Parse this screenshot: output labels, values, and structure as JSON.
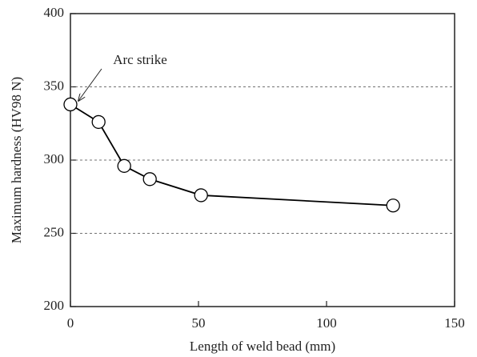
{
  "chart_data": {
    "type": "line",
    "x_label": "Length of weld bead (mm)",
    "y_label": "Maximum hardness (HV98 N)",
    "annotation": "Arc strike",
    "x": [
      0,
      11,
      21,
      31,
      51,
      126
    ],
    "series": [
      {
        "name": "Maximum hardness",
        "color": "#000000",
        "values": [
          338,
          326,
          296,
          287,
          276,
          269
        ]
      }
    ],
    "xlim": [
      0,
      150
    ],
    "xticks": [
      0,
      50,
      100,
      150
    ],
    "ylim": [
      200,
      400
    ],
    "yticks": [
      200,
      250,
      300,
      350,
      400
    ],
    "grid": true
  }
}
